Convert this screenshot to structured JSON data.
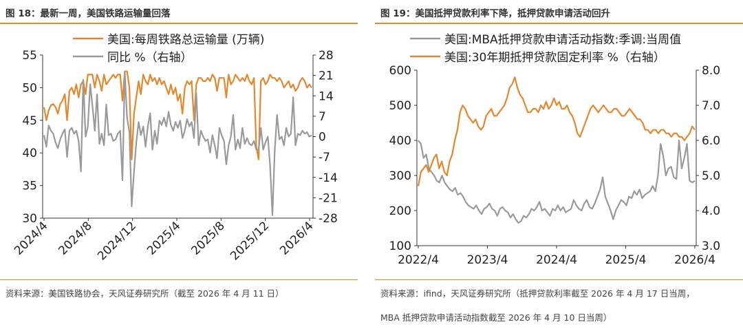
{
  "left": {
    "title": "图 18：最新一周，美国铁路运输量回落",
    "source": "资料来源：美国铁路协会，天风证券研究所（截至 2026 年 4 月 11 日）",
    "chart_data": {
      "type": "line",
      "series": [
        {
          "name": "美国:每周铁路总运输量 (万辆)",
          "axis": "left",
          "color": "#e8862a",
          "values": [
            47.0,
            45.0,
            46.5,
            47.3,
            47.5,
            47.0,
            46.0,
            47.5,
            48.0,
            49.0,
            45.0,
            49.5,
            50.0,
            49.0,
            50.5,
            48.5,
            50.5,
            51.0,
            49.0,
            52.0,
            52.0,
            52.0,
            50.0,
            52.0,
            51.0,
            49.5,
            52.0,
            50.5,
            51.0,
            51.5,
            52.0,
            51.5,
            52.0,
            52.0,
            48.0,
            52.5,
            52.5,
            50.0,
            39.0,
            46.0,
            48.5,
            51.0,
            49.0,
            52.0,
            51.0,
            50.5,
            52.0,
            51.0,
            51.5,
            50.5,
            51.5,
            50.5,
            51.0,
            50.0,
            49.0,
            50.5,
            49.0,
            50.0,
            48.0,
            49.0,
            46.0,
            50.0,
            51.0,
            50.5,
            51.0,
            45.0,
            50.5,
            51.5,
            51.5,
            51.0,
            51.0,
            51.5,
            51.0,
            52.0,
            51.5,
            49.5,
            51.5,
            51.5,
            51.5,
            48.5,
            52.0,
            50.5,
            51.0,
            52.0,
            51.5,
            51.0,
            51.5,
            51.0,
            52.0,
            51.0,
            50.5,
            51.5,
            41.0,
            39.0,
            51.0,
            51.5,
            50.5,
            51.0,
            52.0,
            51.5,
            51.5,
            51.0,
            51.5,
            51.0,
            50.0,
            50.5,
            51.0,
            50.0,
            50.5,
            49.5,
            50.0,
            51.0,
            51.5,
            51.0,
            50.0,
            50.5,
            50.0
          ]
        },
        {
          "name": "同比 %（右轴）",
          "axis": "right",
          "color": "#9a9a9a",
          "values": [
            0.5,
            -3.5,
            3.8,
            2.0,
            1.0,
            -2.0,
            -4.0,
            -1.0,
            1.0,
            2.5,
            -7.0,
            2.0,
            3.0,
            1.0,
            2.0,
            -1.5,
            -12.0,
            19.5,
            0.0,
            3.5,
            18.0,
            10.5,
            2.0,
            14.5,
            -2.5,
            1.0,
            -3.0,
            11.0,
            0.5,
            1.0,
            -1.5,
            -1.0,
            1.0,
            2.0,
            -15.0,
            22.0,
            6.5,
            1.5,
            -24.0,
            -12.0,
            -2.0,
            5.0,
            0.5,
            3.5,
            -3.5,
            3.5,
            8.0,
            -4.5,
            2.0,
            -2.5,
            5.5,
            4.0,
            6.5,
            3.5,
            8.5,
            4.0,
            2.0,
            5.0,
            3.0,
            5.5,
            -0.5,
            2.0,
            6.0,
            3.5,
            5.0,
            -0.5,
            15.0,
            -3.0,
            2.0,
            0.0,
            -1.5,
            -1.0,
            -5.5,
            0.5,
            -3.0,
            -7.5,
            3.0,
            0.5,
            -1.5,
            -9.5,
            -3.0,
            0.0,
            7.5,
            -4.5,
            -1.0,
            -4.0,
            3.0,
            -2.5,
            -0.5,
            -2.5,
            -3.0,
            -1.5,
            -4.5,
            -4.5,
            3.0,
            -4.5,
            -2.0,
            0.0,
            -10.0,
            -27.0,
            -5.0,
            7.5,
            -1.0,
            0.0,
            -3.0,
            3.0,
            0.0,
            1.0,
            13.5,
            -3.0,
            1.0,
            0.5,
            2.0,
            1.0,
            1.5,
            0.0,
            0.5
          ]
        }
      ],
      "x_ticks": [
        "2024/4",
        "2024/8",
        "2024/12",
        "2025/4",
        "2025/8",
        "2025/12",
        "2026/4"
      ],
      "y_left": {
        "min": 30,
        "max": 55,
        "ticks": [
          30,
          35,
          40,
          45,
          50,
          55
        ]
      },
      "y_right": {
        "min": -28,
        "max": 28,
        "ticks": [
          -28,
          -21,
          -14,
          -7,
          0,
          7,
          14,
          21,
          28
        ]
      },
      "legend_position": "top-center"
    }
  },
  "right": {
    "title": "图 19：美国抵押贷款利率下降，抵押贷款申请活动回升",
    "source_line1": "资料来源：ifind，天风证券研究所（抵押贷款利率截至 2026 年 4 月 17 日当周，",
    "source_line2": "MBA 抵押贷款申请活动指数截至 2026 年 4 月 10 日当周）",
    "chart_data": {
      "type": "line",
      "series": [
        {
          "name": "美国:MBA抵押贷款申请活动指数:季调:当周值",
          "axis": "left",
          "color": "#9a9a9a",
          "values": [
            400,
            390,
            350,
            360,
            320,
            310,
            300,
            285,
            280,
            300,
            280,
            270,
            260,
            255,
            265,
            245,
            250,
            240,
            225,
            215,
            210,
            205,
            215,
            200,
            190,
            205,
            210,
            220,
            205,
            200,
            185,
            205,
            210,
            200,
            195,
            180,
            190,
            175,
            165,
            170,
            185,
            180,
            190,
            205,
            200,
            210,
            225,
            200,
            205,
            195,
            185,
            205,
            200,
            215,
            200,
            210,
            195,
            200,
            205,
            230,
            215,
            205,
            200,
            220,
            230,
            210,
            205,
            220,
            240,
            260,
            295,
            240,
            220,
            200,
            175,
            200,
            215,
            230,
            225,
            215,
            240,
            235,
            255,
            245,
            260,
            235,
            245,
            250,
            255,
            270,
            255,
            300,
            390,
            355,
            300,
            320,
            325,
            295,
            290,
            400,
            320,
            350,
            390,
            285,
            280,
            285
          ]
        },
        {
          "name": "美国:30年期抵押贷款固定利率 %（右轴）",
          "axis": "right",
          "color": "#e8862a",
          "values": [
            4.7,
            5.1,
            5.2,
            5.3,
            5.1,
            5.3,
            5.5,
            5.6,
            5.2,
            5.4,
            5.1,
            5.0,
            5.4,
            5.6,
            6.0,
            6.3,
            6.8,
            7.0,
            6.9,
            6.7,
            6.6,
            6.5,
            6.6,
            6.4,
            6.3,
            6.4,
            6.7,
            6.8,
            6.9,
            6.7,
            6.7,
            6.8,
            6.9,
            7.0,
            7.2,
            7.5,
            7.6,
            7.8,
            7.5,
            7.3,
            7.2,
            7.0,
            6.8,
            6.8,
            6.9,
            6.9,
            6.8,
            7.0,
            6.9,
            7.1,
            6.9,
            7.0,
            7.2,
            7.0,
            7.1,
            6.9,
            6.9,
            7.0,
            6.8,
            6.7,
            6.5,
            6.2,
            6.1,
            6.3,
            6.5,
            6.7,
            6.9,
            7.0,
            6.9,
            6.8,
            6.9,
            7.0,
            6.9,
            6.8,
            6.8,
            6.9,
            6.9,
            6.8,
            6.7,
            6.7,
            6.8,
            6.9,
            6.8,
            6.7,
            6.6,
            6.6,
            6.5,
            6.3,
            6.3,
            6.2,
            6.3,
            6.3,
            6.2,
            6.3,
            6.3,
            6.2,
            6.2,
            6.1,
            6.2,
            6.2,
            6.1,
            6.1,
            6.0,
            6.1,
            6.2,
            6.4,
            6.3
          ]
        }
      ],
      "x_ticks": [
        "2022/4",
        "2023/4",
        "2024/4",
        "2025/4",
        "2026/4"
      ],
      "y_left": {
        "min": 100,
        "max": 600,
        "ticks": [
          100,
          200,
          300,
          400,
          500,
          600
        ]
      },
      "y_right": {
        "min": 3.0,
        "max": 8.0,
        "ticks": [
          "3.0",
          "4.0",
          "5.0",
          "6.0",
          "7.0",
          "8.0"
        ]
      },
      "legend_position": "top-center"
    }
  }
}
